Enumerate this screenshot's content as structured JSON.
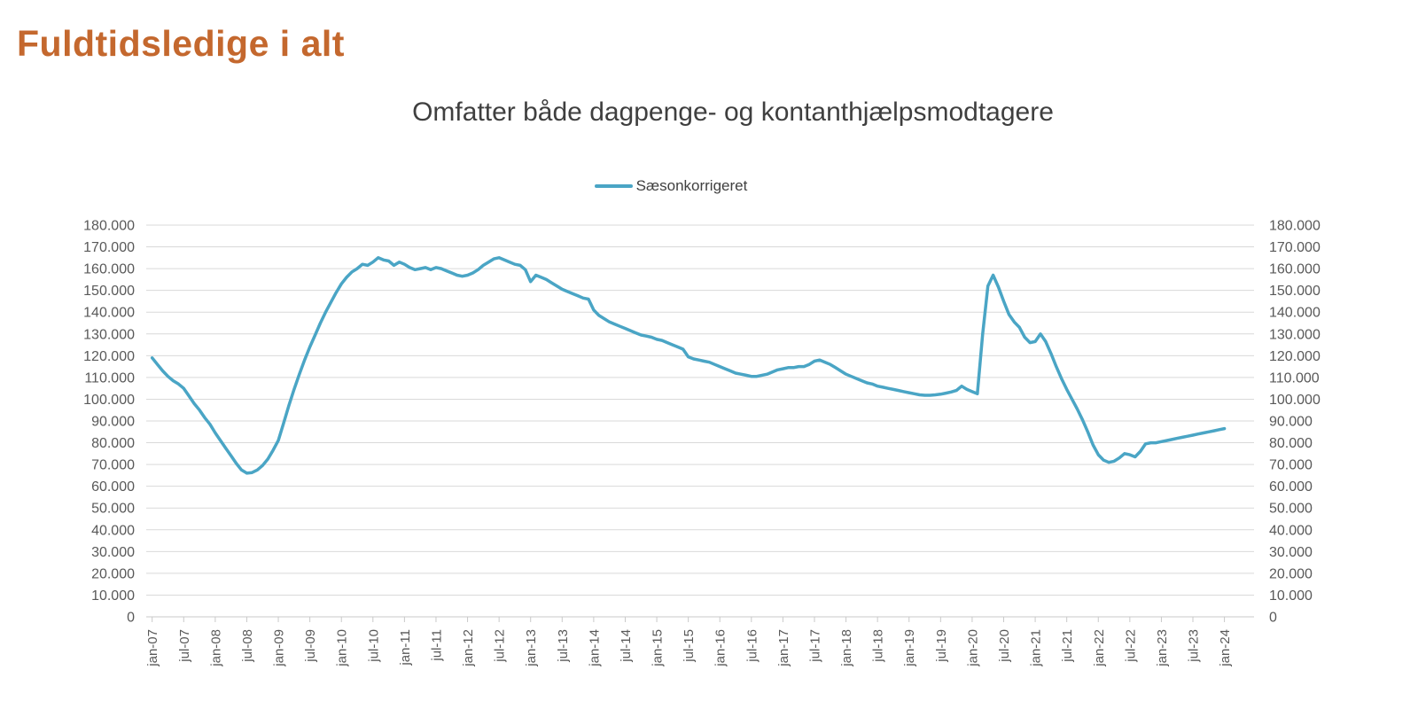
{
  "header": {
    "title": "Fuldtidsledige i alt"
  },
  "colors": {
    "title_text": "#C4682E",
    "subtitle_text": "#3F3F3F",
    "axis_text": "#595959",
    "gridline": "#D9D9D9",
    "axis_line": "#C9C9C9",
    "series_line": "#4AA5C5",
    "background": "#FFFFFF"
  },
  "chart_data": {
    "type": "line",
    "title": "Omfatter både dagpenge- og kontanthjælpsmodtagere",
    "legend_position": "top-center",
    "grid": "horizontal",
    "y_axis": {
      "min": 0,
      "max": 180000,
      "step": 10000,
      "tick_labels": [
        "180.000",
        "170.000",
        "160.000",
        "150.000",
        "140.000",
        "130.000",
        "120.000",
        "110.000",
        "100.000",
        "90.000",
        "80.000",
        "70.000",
        "60.000",
        "50.000",
        "40.000",
        "30.000",
        "20.000",
        "10.000",
        "0"
      ],
      "shown_on": "both-sides"
    },
    "x_axis": {
      "tick_labels": [
        "jan-07",
        "jul-07",
        "jan-08",
        "jul-08",
        "jan-09",
        "jul-09",
        "jan-10",
        "jul-10",
        "jan-11",
        "jul-11",
        "jan-12",
        "jul-12",
        "jan-13",
        "jul-13",
        "jan-14",
        "jul-14",
        "jan-15",
        "jul-15",
        "jan-16",
        "jul-16",
        "jan-17",
        "jul-17",
        "jan-18",
        "jul-18",
        "jan-19",
        "jul-19",
        "jan-20",
        "jul-20",
        "jan-21",
        "jul-21",
        "jan-22",
        "jul-22",
        "jan-23",
        "jul-23",
        "jan-24"
      ],
      "tick_interval_months": 6,
      "label_rotation_degrees": -90
    },
    "series": [
      {
        "name": "Sæsonkorrigeret",
        "color": "#4AA5C5",
        "frequency": "monthly",
        "start": "jan-07",
        "end": "jan-24",
        "values": [
          119000,
          116000,
          113000,
          110500,
          108500,
          107000,
          105000,
          101500,
          98000,
          95000,
          91500,
          88500,
          84500,
          81000,
          77500,
          74000,
          70500,
          67500,
          66000,
          66300,
          67500,
          69500,
          72500,
          76500,
          81000,
          89000,
          97000,
          104500,
          111500,
          118000,
          124000,
          129500,
          135000,
          140000,
          144500,
          149000,
          153000,
          156000,
          158500,
          160000,
          162000,
          161500,
          163000,
          165000,
          164000,
          163500,
          161500,
          163000,
          162000,
          160500,
          159500,
          160000,
          160500,
          159500,
          160500,
          160000,
          159000,
          158000,
          157000,
          156500,
          157000,
          158000,
          159500,
          161500,
          163000,
          164500,
          165000,
          164000,
          163000,
          162000,
          161500,
          159500,
          154000,
          157000,
          156000,
          155000,
          153500,
          152000,
          150500,
          149500,
          148500,
          147500,
          146500,
          146000,
          141000,
          138500,
          137000,
          135500,
          134500,
          133500,
          132500,
          131500,
          130500,
          129500,
          129000,
          128500,
          127500,
          127000,
          126000,
          125000,
          124000,
          123000,
          119500,
          118500,
          118000,
          117500,
          117000,
          116000,
          115000,
          114000,
          113000,
          112000,
          111500,
          111000,
          110500,
          110500,
          111000,
          111500,
          112500,
          113500,
          114000,
          114500,
          114500,
          115000,
          115000,
          116000,
          117500,
          118000,
          117000,
          116000,
          114500,
          113000,
          111500,
          110500,
          109500,
          108500,
          107500,
          107000,
          106000,
          105500,
          105000,
          104500,
          104000,
          103500,
          103000,
          102500,
          102000,
          101800,
          101800,
          102000,
          102300,
          102800,
          103300,
          104000,
          106000,
          104500,
          103500,
          102500,
          130000,
          152000,
          157000,
          151500,
          145000,
          139000,
          135500,
          133000,
          128500,
          126000,
          126500,
          130000,
          126500,
          121000,
          115000,
          109500,
          104500,
          100000,
          95500,
          90500,
          85000,
          79000,
          74500,
          72000,
          71000,
          71500,
          73000,
          75000,
          74500,
          73500,
          76000,
          79500,
          80000,
          80000,
          80500,
          81000,
          81500,
          82000,
          82500,
          83000,
          83500,
          84000,
          84500,
          85000,
          85500,
          86000,
          86500
        ]
      }
    ]
  }
}
